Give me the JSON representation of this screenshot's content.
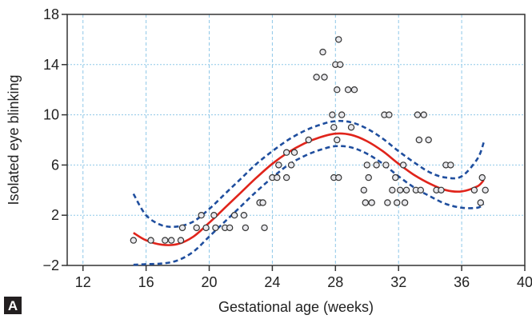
{
  "chart_data": {
    "type": "scatter",
    "panel_label": "A",
    "xlabel": "Gestational age (weeks)",
    "ylabel": "Isolated eye blinking",
    "xlim": [
      11,
      40
    ],
    "ylim": [
      -2,
      18
    ],
    "x_ticks": [
      12,
      16,
      20,
      24,
      28,
      32,
      36,
      40
    ],
    "y_ticks": [
      -2,
      2,
      6,
      10,
      14,
      18
    ],
    "x_tick_labels": [
      "12",
      "16",
      "20",
      "24",
      "28",
      "32",
      "36",
      "40"
    ],
    "y_tick_labels": [
      "−2",
      "2",
      "6",
      "10",
      "14",
      "18"
    ],
    "grid": true,
    "colors": {
      "fit": "#e0241b",
      "ci": "#1f4e9e",
      "grid": "#8ec8e8",
      "points": "#333333"
    },
    "points": [
      [
        15.2,
        0
      ],
      [
        16.3,
        0
      ],
      [
        17.2,
        0
      ],
      [
        17.6,
        0
      ],
      [
        18.2,
        0
      ],
      [
        18.3,
        1
      ],
      [
        19.2,
        1
      ],
      [
        19.5,
        2
      ],
      [
        19.8,
        1
      ],
      [
        20.3,
        2
      ],
      [
        20.4,
        1
      ],
      [
        21.0,
        1
      ],
      [
        21.3,
        1
      ],
      [
        21.6,
        2
      ],
      [
        22.2,
        2
      ],
      [
        22.3,
        1
      ],
      [
        23.2,
        3
      ],
      [
        23.4,
        3
      ],
      [
        23.5,
        1
      ],
      [
        24.0,
        5
      ],
      [
        24.3,
        5
      ],
      [
        24.4,
        6
      ],
      [
        24.9,
        5
      ],
      [
        24.9,
        7
      ],
      [
        25.2,
        6
      ],
      [
        25.4,
        7
      ],
      [
        26.3,
        8
      ],
      [
        26.8,
        13
      ],
      [
        27.2,
        15
      ],
      [
        27.3,
        13
      ],
      [
        27.8,
        10
      ],
      [
        27.9,
        9
      ],
      [
        27.9,
        5
      ],
      [
        28.0,
        14
      ],
      [
        28.1,
        12
      ],
      [
        28.1,
        8
      ],
      [
        28.2,
        16
      ],
      [
        28.2,
        5
      ],
      [
        28.3,
        14
      ],
      [
        28.4,
        10
      ],
      [
        28.8,
        12
      ],
      [
        29.0,
        9
      ],
      [
        29.2,
        12
      ],
      [
        29.8,
        4
      ],
      [
        29.9,
        3
      ],
      [
        30.0,
        6
      ],
      [
        30.1,
        5
      ],
      [
        30.3,
        3
      ],
      [
        30.6,
        6
      ],
      [
        31.1,
        10
      ],
      [
        31.2,
        6
      ],
      [
        31.3,
        3
      ],
      [
        31.4,
        10
      ],
      [
        31.6,
        4
      ],
      [
        31.8,
        5
      ],
      [
        31.9,
        3
      ],
      [
        32.1,
        4
      ],
      [
        32.3,
        6
      ],
      [
        32.4,
        3
      ],
      [
        32.5,
        4
      ],
      [
        33.1,
        4
      ],
      [
        33.2,
        10
      ],
      [
        33.3,
        8
      ],
      [
        33.4,
        4
      ],
      [
        33.6,
        10
      ],
      [
        33.9,
        8
      ],
      [
        34.4,
        4
      ],
      [
        34.7,
        4
      ],
      [
        35.0,
        6
      ],
      [
        35.3,
        6
      ],
      [
        36.8,
        4
      ],
      [
        37.2,
        3
      ],
      [
        37.3,
        5
      ],
      [
        37.5,
        4
      ]
    ],
    "fit_line": [
      [
        15.2,
        0.6
      ],
      [
        16,
        0.0
      ],
      [
        17,
        -0.35
      ],
      [
        18,
        -0.3
      ],
      [
        19,
        0.3
      ],
      [
        20,
        1.4
      ],
      [
        21,
        2.6
      ],
      [
        22,
        3.8
      ],
      [
        23,
        5.0
      ],
      [
        24,
        6.1
      ],
      [
        25,
        7.0
      ],
      [
        26,
        7.7
      ],
      [
        27,
        8.2
      ],
      [
        28,
        8.5
      ],
      [
        29,
        8.4
      ],
      [
        30,
        7.9
      ],
      [
        31,
        7.1
      ],
      [
        32,
        6.1
      ],
      [
        33,
        5.2
      ],
      [
        34,
        4.5
      ],
      [
        35,
        4.0
      ],
      [
        36,
        3.9
      ],
      [
        37,
        4.3
      ],
      [
        37.4,
        4.8
      ]
    ],
    "ci_upper": [
      [
        15.2,
        3.7
      ],
      [
        16,
        2.0
      ],
      [
        17,
        1.2
      ],
      [
        18,
        1.1
      ],
      [
        19,
        1.5
      ],
      [
        20,
        2.5
      ],
      [
        21,
        3.7
      ],
      [
        22,
        4.9
      ],
      [
        23,
        6.1
      ],
      [
        24,
        7.1
      ],
      [
        25,
        8.0
      ],
      [
        26,
        8.7
      ],
      [
        27,
        9.2
      ],
      [
        28,
        9.5
      ],
      [
        29,
        9.4
      ],
      [
        30,
        8.9
      ],
      [
        31,
        8.1
      ],
      [
        32,
        7.1
      ],
      [
        33,
        6.2
      ],
      [
        34,
        5.4
      ],
      [
        35,
        5.0
      ],
      [
        36,
        5.1
      ],
      [
        37,
        6.5
      ],
      [
        37.4,
        7.8
      ]
    ],
    "ci_lower": [
      [
        15.2,
        -1.95
      ],
      [
        16,
        -1.9
      ],
      [
        17,
        -1.85
      ],
      [
        18,
        -1.6
      ],
      [
        19,
        -0.9
      ],
      [
        20,
        0.3
      ],
      [
        21,
        1.5
      ],
      [
        22,
        2.7
      ],
      [
        23,
        3.9
      ],
      [
        24,
        5.0
      ],
      [
        25,
        6.0
      ],
      [
        26,
        6.7
      ],
      [
        27,
        7.2
      ],
      [
        28,
        7.5
      ],
      [
        29,
        7.4
      ],
      [
        30,
        6.9
      ],
      [
        31,
        6.1
      ],
      [
        32,
        5.1
      ],
      [
        33,
        4.2
      ],
      [
        34,
        3.5
      ],
      [
        35,
        2.9
      ],
      [
        36,
        2.6
      ],
      [
        37,
        2.6
      ],
      [
        37.4,
        2.9
      ]
    ]
  }
}
